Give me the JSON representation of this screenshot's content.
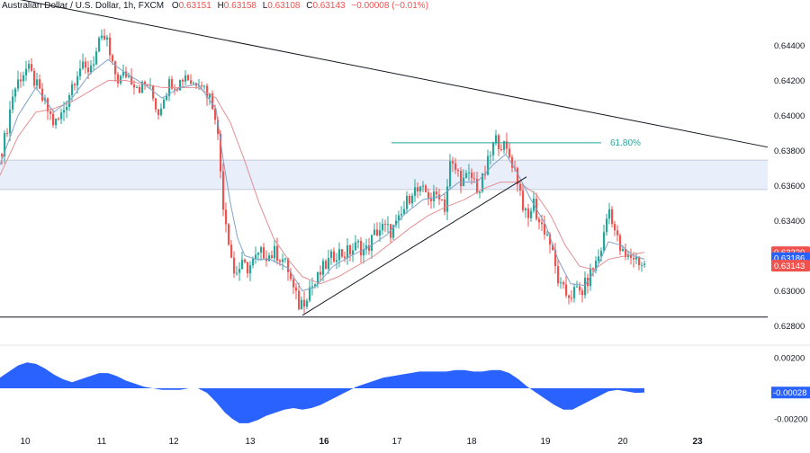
{
  "header": {
    "symbol_text": "Australian Dollar / U.S. Dollar, 1h, FXCM",
    "open_label": "O",
    "open": "0.63151",
    "high_label": "H",
    "high": "0.63158",
    "low_label": "L",
    "low": "0.63108",
    "close_label": "C",
    "close": "0.63143",
    "change": "−0.00008 (−0.01%)"
  },
  "colors": {
    "up": "#26a69a",
    "down": "#ef5350",
    "ma_fast": "#7fa2c8",
    "ma_slow": "#e48f93",
    "fib": "#26a69a",
    "zone": "#e9eefb",
    "oscillator": "#2962ff",
    "trendline": "#131722",
    "badge_blue": "#2962ff",
    "badge_red": "#ef5350"
  },
  "chart_data": {
    "type": "candlestick",
    "price_axis": {
      "ticks": [
        "0.64400",
        "0.64200",
        "0.64000",
        "0.63800",
        "0.63600",
        "0.63400",
        "0.63000",
        "0.62800"
      ],
      "tick_values": [
        0.644,
        0.642,
        0.64,
        0.638,
        0.636,
        0.634,
        0.63,
        0.628
      ],
      "ylim": [
        0.6271,
        0.6466
      ]
    },
    "time_axis": {
      "labels": [
        "10",
        "11",
        "12",
        "13",
        "16",
        "17",
        "18",
        "19",
        "20",
        "23"
      ],
      "bold": [
        false,
        false,
        false,
        false,
        true,
        false,
        false,
        false,
        false,
        true
      ]
    },
    "price_badges": [
      {
        "value": 0.6322,
        "text": "0.63220",
        "style": "red"
      },
      {
        "value": 0.63186,
        "text": "0.63186",
        "style": "blue"
      },
      {
        "value": 0.63143,
        "text": "0.63143",
        "style": "red"
      }
    ],
    "price_path": [
      [
        0,
        0.6378
      ],
      [
        6,
        0.6388
      ],
      [
        14,
        0.6412
      ],
      [
        22,
        0.6422
      ],
      [
        30,
        0.6427
      ],
      [
        38,
        0.642
      ],
      [
        46,
        0.641
      ],
      [
        54,
        0.6402
      ],
      [
        60,
        0.6395
      ],
      [
        66,
        0.6398
      ],
      [
        72,
        0.6405
      ],
      [
        80,
        0.6418
      ],
      [
        88,
        0.6428
      ],
      [
        96,
        0.6425
      ],
      [
        104,
        0.6432
      ],
      [
        110,
        0.644
      ],
      [
        118,
        0.6445
      ],
      [
        124,
        0.6428
      ],
      [
        132,
        0.642
      ],
      [
        140,
        0.6424
      ],
      [
        148,
        0.642
      ],
      [
        156,
        0.6416
      ],
      [
        164,
        0.6418
      ],
      [
        170,
        0.641
      ],
      [
        176,
        0.6402
      ],
      [
        182,
        0.6412
      ],
      [
        190,
        0.642
      ],
      [
        198,
        0.6418
      ],
      [
        206,
        0.6424
      ],
      [
        214,
        0.6418
      ],
      [
        222,
        0.6422
      ],
      [
        228,
        0.6415
      ],
      [
        234,
        0.641
      ],
      [
        240,
        0.64
      ],
      [
        244,
        0.6375
      ],
      [
        248,
        0.635
      ],
      [
        254,
        0.633
      ],
      [
        260,
        0.631
      ],
      [
        268,
        0.6314
      ],
      [
        276,
        0.6313
      ],
      [
        284,
        0.6318
      ],
      [
        292,
        0.6322
      ],
      [
        300,
        0.632
      ],
      [
        306,
        0.6322
      ],
      [
        314,
        0.6318
      ],
      [
        320,
        0.6312
      ],
      [
        326,
        0.63
      ],
      [
        332,
        0.6292
      ],
      [
        338,
        0.6295
      ],
      [
        344,
        0.6302
      ],
      [
        350,
        0.6304
      ],
      [
        358,
        0.6312
      ],
      [
        366,
        0.6317
      ],
      [
        374,
        0.6322
      ],
      [
        382,
        0.6321
      ],
      [
        390,
        0.6323
      ],
      [
        398,
        0.6326
      ],
      [
        406,
        0.6322
      ],
      [
        412,
        0.6328
      ],
      [
        418,
        0.6334
      ],
      [
        426,
        0.6336
      ],
      [
        434,
        0.6334
      ],
      [
        442,
        0.6338
      ],
      [
        450,
        0.6348
      ],
      [
        458,
        0.6358
      ],
      [
        466,
        0.6356
      ],
      [
        474,
        0.6356
      ],
      [
        480,
        0.6352
      ],
      [
        488,
        0.6356
      ],
      [
        494,
        0.6348
      ],
      [
        500,
        0.6372
      ],
      [
        508,
        0.6368
      ],
      [
        514,
        0.6362
      ],
      [
        520,
        0.6365
      ],
      [
        526,
        0.6364
      ],
      [
        532,
        0.6356
      ],
      [
        538,
        0.6366
      ],
      [
        544,
        0.6376
      ],
      [
        550,
        0.6386
      ],
      [
        556,
        0.6385
      ],
      [
        562,
        0.638
      ],
      [
        568,
        0.6375
      ],
      [
        574,
        0.6366
      ],
      [
        580,
        0.6352
      ],
      [
        586,
        0.6338
      ],
      [
        592,
        0.6352
      ],
      [
        598,
        0.634
      ],
      [
        604,
        0.6336
      ],
      [
        610,
        0.633
      ],
      [
        616,
        0.6315
      ],
      [
        622,
        0.6302
      ],
      [
        628,
        0.6298
      ],
      [
        634,
        0.6298
      ],
      [
        640,
        0.63
      ],
      [
        646,
        0.6299
      ],
      [
        652,
        0.6305
      ],
      [
        658,
        0.6312
      ],
      [
        664,
        0.6318
      ],
      [
        670,
        0.6328
      ],
      [
        676,
        0.6348
      ],
      [
        680,
        0.6342
      ],
      [
        684,
        0.6332
      ],
      [
        690,
        0.6322
      ],
      [
        696,
        0.6318
      ],
      [
        702,
        0.632
      ],
      [
        708,
        0.6318
      ],
      [
        714,
        0.6315
      ],
      [
        716,
        0.63143
      ]
    ],
    "ma_fast_path": [
      [
        0,
        0.6372
      ],
      [
        20,
        0.64
      ],
      [
        40,
        0.6416
      ],
      [
        60,
        0.6402
      ],
      [
        80,
        0.641
      ],
      [
        100,
        0.6424
      ],
      [
        120,
        0.6432
      ],
      [
        140,
        0.6424
      ],
      [
        160,
        0.6418
      ],
      [
        180,
        0.641
      ],
      [
        200,
        0.6416
      ],
      [
        220,
        0.6418
      ],
      [
        240,
        0.6404
      ],
      [
        248,
        0.6375
      ],
      [
        256,
        0.635
      ],
      [
        264,
        0.633
      ],
      [
        272,
        0.632
      ],
      [
        284,
        0.6318
      ],
      [
        300,
        0.6318
      ],
      [
        320,
        0.6313
      ],
      [
        336,
        0.63
      ],
      [
        350,
        0.6302
      ],
      [
        370,
        0.6314
      ],
      [
        390,
        0.632
      ],
      [
        410,
        0.6325
      ],
      [
        430,
        0.6332
      ],
      [
        450,
        0.6344
      ],
      [
        470,
        0.6352
      ],
      [
        490,
        0.6354
      ],
      [
        510,
        0.6362
      ],
      [
        530,
        0.6362
      ],
      [
        548,
        0.6372
      ],
      [
        562,
        0.6378
      ],
      [
        574,
        0.6368
      ],
      [
        590,
        0.6352
      ],
      [
        606,
        0.6338
      ],
      [
        620,
        0.6318
      ],
      [
        634,
        0.6304
      ],
      [
        650,
        0.6303
      ],
      [
        664,
        0.6314
      ],
      [
        676,
        0.6328
      ],
      [
        690,
        0.6326
      ],
      [
        704,
        0.632
      ],
      [
        716,
        0.6318
      ]
    ],
    "ma_slow_path": [
      [
        0,
        0.6366
      ],
      [
        20,
        0.6388
      ],
      [
        40,
        0.6402
      ],
      [
        60,
        0.6404
      ],
      [
        80,
        0.6408
      ],
      [
        100,
        0.6414
      ],
      [
        120,
        0.642
      ],
      [
        140,
        0.642
      ],
      [
        160,
        0.6418
      ],
      [
        180,
        0.6416
      ],
      [
        200,
        0.6416
      ],
      [
        220,
        0.6416
      ],
      [
        240,
        0.641
      ],
      [
        256,
        0.6396
      ],
      [
        272,
        0.6374
      ],
      [
        288,
        0.635
      ],
      [
        304,
        0.633
      ],
      [
        320,
        0.6318
      ],
      [
        336,
        0.6308
      ],
      [
        356,
        0.6304
      ],
      [
        376,
        0.6308
      ],
      [
        396,
        0.6314
      ],
      [
        416,
        0.632
      ],
      [
        436,
        0.6328
      ],
      [
        456,
        0.6336
      ],
      [
        476,
        0.6343
      ],
      [
        496,
        0.6348
      ],
      [
        516,
        0.6352
      ],
      [
        536,
        0.6358
      ],
      [
        556,
        0.6362
      ],
      [
        576,
        0.6362
      ],
      [
        596,
        0.6355
      ],
      [
        612,
        0.6343
      ],
      [
        628,
        0.6326
      ],
      [
        644,
        0.6314
      ],
      [
        660,
        0.6312
      ],
      [
        676,
        0.6318
      ],
      [
        696,
        0.632
      ],
      [
        716,
        0.6322
      ]
    ],
    "oscillator": {
      "ticks": [
        "0.00200",
        "-0.00200"
      ],
      "tick_values": [
        0.002,
        -0.002
      ],
      "current_label": "-0.00028",
      "ylim": [
        -0.0026,
        0.0026
      ],
      "path": [
        [
          0,
          0.0007
        ],
        [
          10,
          0.0011
        ],
        [
          20,
          0.0015
        ],
        [
          30,
          0.0017
        ],
        [
          40,
          0.0016
        ],
        [
          50,
          0.0013
        ],
        [
          60,
          0.0009
        ],
        [
          70,
          0.0006
        ],
        [
          80,
          0.0004
        ],
        [
          90,
          0.0006
        ],
        [
          100,
          0.0008
        ],
        [
          110,
          0.001
        ],
        [
          120,
          0.001
        ],
        [
          130,
          0.0008
        ],
        [
          140,
          0.0005
        ],
        [
          150,
          0.0003
        ],
        [
          160,
          0.0001
        ],
        [
          170,
          0.0
        ],
        [
          180,
          -0.0001
        ],
        [
          190,
          -0.0001
        ],
        [
          200,
          -0.0001
        ],
        [
          210,
          0.0
        ],
        [
          220,
          0.0
        ],
        [
          230,
          -0.0003
        ],
        [
          240,
          -0.0009
        ],
        [
          250,
          -0.0016
        ],
        [
          258,
          -0.002
        ],
        [
          266,
          -0.0023
        ],
        [
          276,
          -0.0023
        ],
        [
          286,
          -0.0021
        ],
        [
          296,
          -0.0018
        ],
        [
          306,
          -0.0016
        ],
        [
          316,
          -0.0014
        ],
        [
          326,
          -0.0013
        ],
        [
          336,
          -0.0014
        ],
        [
          346,
          -0.0013
        ],
        [
          356,
          -0.0011
        ],
        [
          366,
          -0.0008
        ],
        [
          376,
          -0.0005
        ],
        [
          386,
          -0.0002
        ],
        [
          396,
          0.0001
        ],
        [
          406,
          0.0003
        ],
        [
          416,
          0.0005
        ],
        [
          426,
          0.0007
        ],
        [
          436,
          0.0008
        ],
        [
          446,
          0.0009
        ],
        [
          456,
          0.001
        ],
        [
          466,
          0.0011
        ],
        [
          476,
          0.0011
        ],
        [
          486,
          0.0011
        ],
        [
          496,
          0.0011
        ],
        [
          506,
          0.0012
        ],
        [
          516,
          0.0012
        ],
        [
          526,
          0.0011
        ],
        [
          536,
          0.0011
        ],
        [
          546,
          0.0012
        ],
        [
          556,
          0.0012
        ],
        [
          566,
          0.001
        ],
        [
          576,
          0.0006
        ],
        [
          586,
          0.0001
        ],
        [
          596,
          -0.0003
        ],
        [
          606,
          -0.0007
        ],
        [
          616,
          -0.0011
        ],
        [
          626,
          -0.0014
        ],
        [
          636,
          -0.0014
        ],
        [
          646,
          -0.0011
        ],
        [
          656,
          -0.0008
        ],
        [
          666,
          -0.0005
        ],
        [
          676,
          -0.0002
        ],
        [
          686,
          -0.0001
        ],
        [
          696,
          -0.0002
        ],
        [
          706,
          -0.0003
        ],
        [
          716,
          -0.00028
        ]
      ]
    },
    "annotations": {
      "fib_label": "61.80%",
      "fib_level": 0.63845,
      "fib_x_range": [
        435,
        668
      ],
      "zone": [
        0.63578,
        0.63746
      ],
      "support_level": 0.6285,
      "falling_trendline": [
        [
          0,
          0.64685
        ],
        [
          853,
          0.6382
        ]
      ],
      "rising_trendline": [
        [
          336,
          0.6286
        ],
        [
          585,
          0.6365
        ]
      ]
    }
  }
}
